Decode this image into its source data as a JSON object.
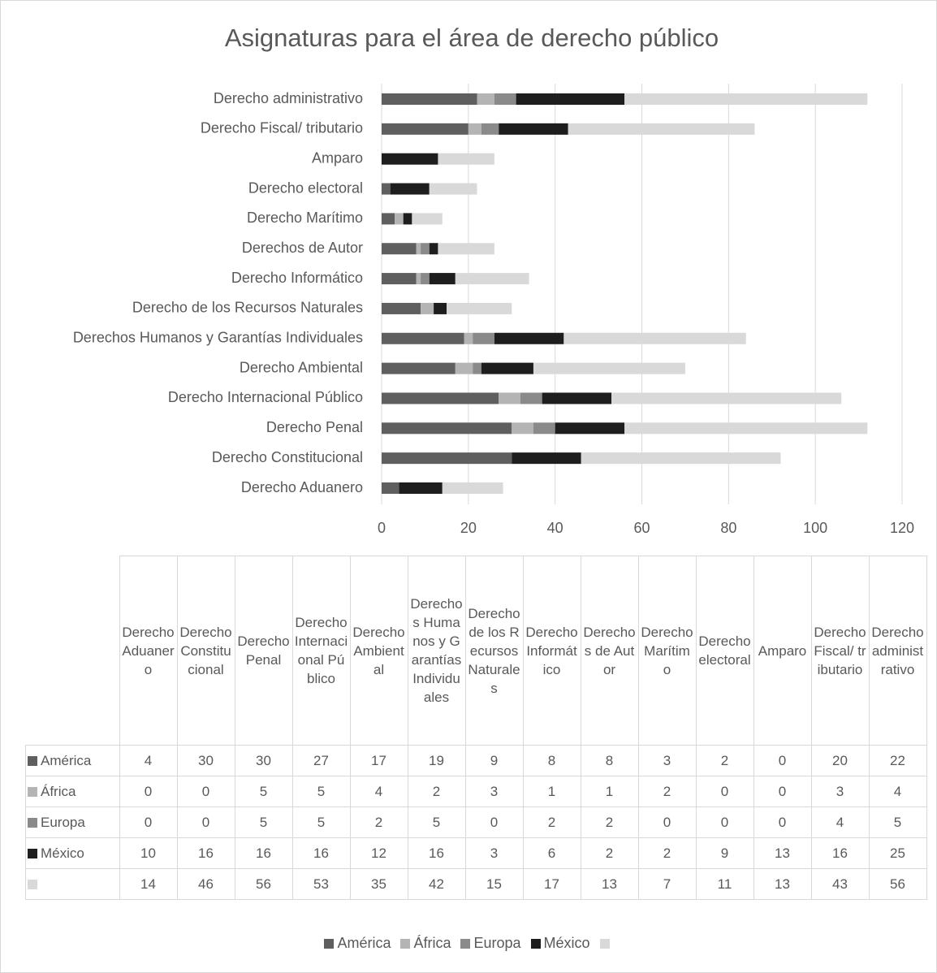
{
  "chart_data": {
    "type": "stacked-bar-horizontal",
    "title": "Asignaturas para el área de derecho público",
    "categories": [
      "Derecho Aduanero",
      "Derecho Constitucional",
      "Derecho Penal",
      "Derecho Internacional Público",
      "Derecho Ambiental",
      "Derechos Humanos y Garantías Individuales",
      "Derecho de los Recursos Naturales",
      "Derecho Informático",
      "Derechos de Autor",
      "Derecho Marítimo",
      "Derecho electoral",
      "Amparo",
      "Derecho Fiscal/ tributario",
      "Derecho administrativo"
    ],
    "series": [
      {
        "name": "América",
        "color": "#5f5f5f",
        "values": [
          4,
          30,
          30,
          27,
          17,
          19,
          9,
          8,
          8,
          3,
          2,
          0,
          20,
          22
        ]
      },
      {
        "name": "África",
        "color": "#b4b4b4",
        "values": [
          0,
          0,
          5,
          5,
          4,
          2,
          3,
          1,
          1,
          2,
          0,
          0,
          3,
          4
        ]
      },
      {
        "name": "Europa",
        "color": "#8a8a8a",
        "values": [
          0,
          0,
          5,
          5,
          2,
          5,
          0,
          2,
          2,
          0,
          0,
          0,
          4,
          5
        ]
      },
      {
        "name": "México",
        "color": "#1e1e1e",
        "values": [
          10,
          16,
          16,
          16,
          12,
          16,
          3,
          6,
          2,
          2,
          9,
          13,
          16,
          25
        ]
      },
      {
        "color": "#d9d9d9",
        "values": [
          14,
          46,
          56,
          53,
          35,
          42,
          15,
          17,
          13,
          7,
          11,
          13,
          43,
          56
        ]
      }
    ],
    "xlim": [
      0,
      120
    ],
    "xticks": [
      0,
      20,
      40,
      60,
      80,
      100,
      120
    ],
    "grid": true,
    "legend": "bottom",
    "data_table": true
  }
}
